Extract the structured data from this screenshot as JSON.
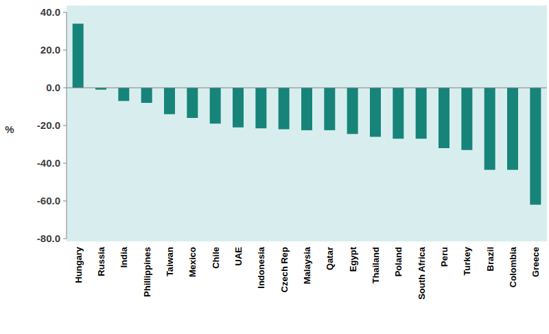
{
  "chart_data": {
    "type": "bar",
    "ylabel": "%",
    "categories": [
      "Hungary",
      "Russia",
      "India",
      "Phillippines",
      "Taiwan",
      "Mexico",
      "Chile",
      "UAE",
      "Indonesia",
      "Czech Rep",
      "Malaysia",
      "Qatar",
      "Egypt",
      "Thailand",
      "Poland",
      "South Africa",
      "Peru",
      "Turkey",
      "Brazil",
      "Colombia",
      "Greece"
    ],
    "values": [
      34,
      -1,
      -7,
      -8,
      -14,
      -16,
      -19,
      -21,
      -21.5,
      -22,
      -22.5,
      -22.5,
      -24.5,
      -26,
      -27,
      -27,
      -32,
      -33,
      -43.5,
      -43.5,
      -62
    ],
    "color": "#17847a",
    "ylim": [
      -80,
      40
    ],
    "yticks": [
      {
        "value": -80,
        "label": "-80.0"
      },
      {
        "value": -60,
        "label": "-60.0"
      },
      {
        "value": -40,
        "label": "-40.0"
      },
      {
        "value": -20,
        "label": "-20.0"
      },
      {
        "value": 0,
        "label": "0.0"
      },
      {
        "value": 20,
        "label": "20.0"
      },
      {
        "value": 40,
        "label": "40.0"
      }
    ],
    "grid": false
  }
}
